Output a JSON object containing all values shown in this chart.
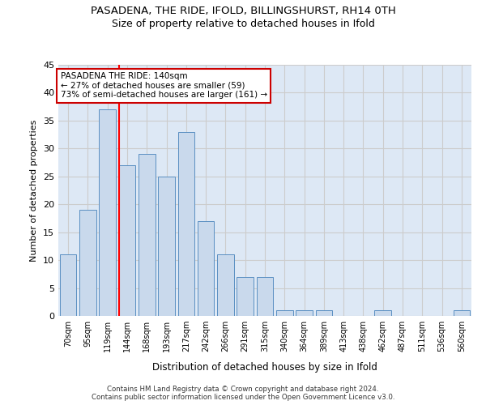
{
  "title1": "PASADENA, THE RIDE, IFOLD, BILLINGSHURST, RH14 0TH",
  "title2": "Size of property relative to detached houses in Ifold",
  "xlabel": "Distribution of detached houses by size in Ifold",
  "ylabel": "Number of detached properties",
  "categories": [
    "70sqm",
    "95sqm",
    "119sqm",
    "144sqm",
    "168sqm",
    "193sqm",
    "217sqm",
    "242sqm",
    "266sqm",
    "291sqm",
    "315sqm",
    "340sqm",
    "364sqm",
    "389sqm",
    "413sqm",
    "438sqm",
    "462sqm",
    "487sqm",
    "511sqm",
    "536sqm",
    "560sqm"
  ],
  "values": [
    11,
    19,
    37,
    27,
    29,
    25,
    33,
    17,
    11,
    7,
    7,
    1,
    1,
    1,
    0,
    0,
    1,
    0,
    0,
    0,
    1
  ],
  "bar_color": "#c9d9ec",
  "bar_edgecolor": "#5a8fc2",
  "grid_color": "#cccccc",
  "background_color": "#dde8f5",
  "red_line_index": 3,
  "annotation_text": "PASADENA THE RIDE: 140sqm\n← 27% of detached houses are smaller (59)\n73% of semi-detached houses are larger (161) →",
  "annotation_box_facecolor": "#ffffff",
  "annotation_box_edgecolor": "#cc0000",
  "footnote": "Contains HM Land Registry data © Crown copyright and database right 2024.\nContains public sector information licensed under the Open Government Licence v3.0.",
  "ylim": [
    0,
    45
  ],
  "yticks": [
    0,
    5,
    10,
    15,
    20,
    25,
    30,
    35,
    40,
    45
  ]
}
